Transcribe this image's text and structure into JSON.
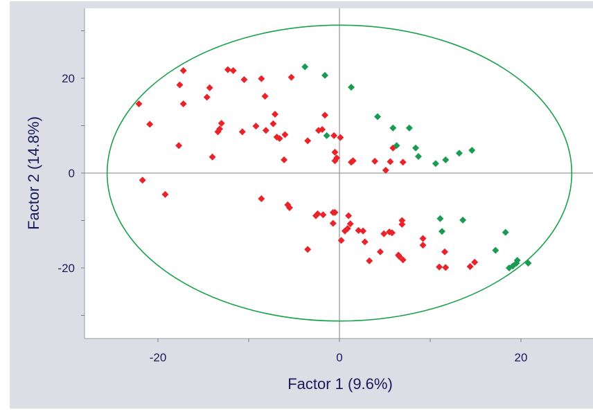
{
  "chart_data": {
    "type": "scatter",
    "xlabel": "Factor 1 (9.6%)",
    "ylabel": "Factor 2 (14.8%)",
    "xlim": [
      -28,
      28
    ],
    "ylim": [
      -35,
      35
    ],
    "x_ticks": [
      -20,
      0,
      20
    ],
    "y_ticks": [
      20,
      0,
      -20
    ],
    "x_minor_ticks": [
      -20,
      -10,
      0,
      10,
      20
    ],
    "y_minor_ticks": [
      30,
      20,
      10,
      0,
      -10,
      -20,
      -30
    ],
    "grid": false,
    "reference_lines": {
      "x": 0,
      "y": 0
    },
    "ellipse": {
      "center": [
        0,
        0
      ],
      "radius_x": 25.6,
      "radius_y": 31.2,
      "color": "#19a04a"
    },
    "series": [
      {
        "color": "#e8242a",
        "points": [
          [
            -22.1,
            14.6
          ],
          [
            -21.7,
            -1.5
          ],
          [
            -20.9,
            10.3
          ],
          [
            -19.2,
            -4.5
          ],
          [
            -17.7,
            5.8
          ],
          [
            -17.6,
            18.6
          ],
          [
            -17.2,
            14.6
          ],
          [
            -17.2,
            21.6
          ],
          [
            -14.6,
            16.0
          ],
          [
            -14.3,
            18.0
          ],
          [
            -14.0,
            3.4
          ],
          [
            -13.4,
            8.7
          ],
          [
            -13.2,
            9.3
          ],
          [
            -13.0,
            10.5
          ],
          [
            -12.3,
            21.8
          ],
          [
            -11.7,
            21.6
          ],
          [
            -10.7,
            8.7
          ],
          [
            -10.5,
            19.7
          ],
          [
            -9.2,
            9.9
          ],
          [
            -8.6,
            -5.4
          ],
          [
            -8.6,
            19.9
          ],
          [
            -8.2,
            16.2
          ],
          [
            -8.1,
            9.0
          ],
          [
            -7.3,
            10.4
          ],
          [
            -7.1,
            12.4
          ],
          [
            -6.9,
            7.6
          ],
          [
            -6.6,
            7.3
          ],
          [
            -6.1,
            2.8
          ],
          [
            -6.0,
            8.1
          ],
          [
            -5.7,
            -6.7
          ],
          [
            -5.5,
            -7.3
          ],
          [
            -5.3,
            20.2
          ],
          [
            -3.5,
            -16.1
          ],
          [
            -3.5,
            6.8
          ],
          [
            -2.6,
            -9.0
          ],
          [
            -2.4,
            -8.6
          ],
          [
            -2.3,
            9.0
          ],
          [
            -1.9,
            9.2
          ],
          [
            -1.8,
            -8.8
          ],
          [
            -1.6,
            12.2
          ],
          [
            -0.7,
            -10.6
          ],
          [
            -0.7,
            -8.3
          ],
          [
            -0.5,
            -8.3
          ],
          [
            -0.6,
            7.9
          ],
          [
            -0.5,
            4.4
          ],
          [
            -0.5,
            2.6
          ],
          [
            -0.3,
            3.2
          ],
          [
            0.1,
            7.5
          ],
          [
            0.2,
            -14.2
          ],
          [
            0.6,
            -12.2
          ],
          [
            0.9,
            -11.7
          ],
          [
            1.0,
            -9.0
          ],
          [
            1.2,
            -10.7
          ],
          [
            1.3,
            2.3
          ],
          [
            1.5,
            2.6
          ],
          [
            2.1,
            -12.1
          ],
          [
            2.6,
            -12.2
          ],
          [
            2.8,
            -14.5
          ],
          [
            3.3,
            -18.5
          ],
          [
            3.9,
            2.5
          ],
          [
            4.5,
            -16.6
          ],
          [
            4.9,
            -12.8
          ],
          [
            5.1,
            0.6
          ],
          [
            5.5,
            -12.4
          ],
          [
            5.6,
            2.4
          ],
          [
            5.8,
            -12.6
          ],
          [
            5.9,
            5.3
          ],
          [
            6.5,
            -17.3
          ],
          [
            6.6,
            -17.6
          ],
          [
            6.9,
            -10.0
          ],
          [
            6.9,
            -10.8
          ],
          [
            7.0,
            -18.3
          ],
          [
            7.0,
            2.3
          ],
          [
            9.2,
            -13.8
          ],
          [
            9.2,
            -15.2
          ],
          [
            11.0,
            -19.8
          ],
          [
            11.6,
            -16.6
          ],
          [
            11.7,
            -19.9
          ],
          [
            14.4,
            -19.7
          ],
          [
            14.9,
            -18.8
          ]
        ]
      },
      {
        "color": "#1b9a54",
        "points": [
          [
            -3.8,
            22.4
          ],
          [
            -1.6,
            20.6
          ],
          [
            -1.4,
            7.9
          ],
          [
            1.3,
            18.1
          ],
          [
            4.2,
            11.9
          ],
          [
            5.9,
            9.5
          ],
          [
            6.3,
            5.8
          ],
          [
            7.7,
            9.5
          ],
          [
            8.4,
            5.3
          ],
          [
            8.7,
            3.5
          ],
          [
            10.6,
            2.0
          ],
          [
            11.1,
            -9.6
          ],
          [
            11.3,
            -12.3
          ],
          [
            11.7,
            2.8
          ],
          [
            13.2,
            4.2
          ],
          [
            13.6,
            -9.9
          ],
          [
            14.6,
            4.8
          ],
          [
            17.2,
            -16.3
          ],
          [
            18.3,
            -12.5
          ],
          [
            18.7,
            -20.0
          ],
          [
            19.1,
            -19.6
          ],
          [
            19.5,
            -19.0
          ],
          [
            19.6,
            -18.4
          ],
          [
            20.8,
            -19.0
          ]
        ]
      }
    ]
  }
}
